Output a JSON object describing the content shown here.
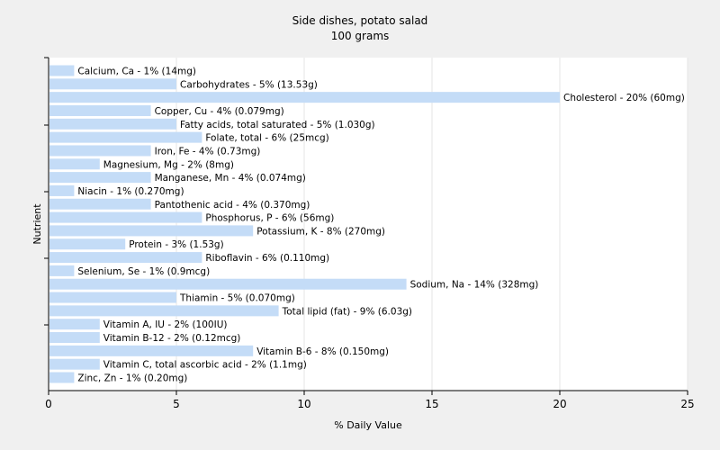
{
  "chart_data": {
    "type": "bar",
    "orientation": "horizontal",
    "title": "Side dishes, potato salad",
    "subtitle": "100 grams",
    "xlabel": "% Daily Value",
    "ylabel": "Nutrient",
    "xlim": [
      0,
      25
    ],
    "xticks": [
      0,
      5,
      10,
      15,
      20,
      25
    ],
    "grid": true,
    "bar_color": "#c4dcf7",
    "categories": [
      "Calcium, Ca - 1% (14mg)",
      "Carbohydrates - 5% (13.53g)",
      "Cholesterol - 20% (60mg)",
      "Copper, Cu - 4% (0.079mg)",
      "Fatty acids, total saturated - 5% (1.030g)",
      "Folate, total - 6% (25mcg)",
      "Iron, Fe - 4% (0.73mg)",
      "Magnesium, Mg - 2% (8mg)",
      "Manganese, Mn - 4% (0.074mg)",
      "Niacin - 1% (0.270mg)",
      "Pantothenic acid - 4% (0.370mg)",
      "Phosphorus, P - 6% (56mg)",
      "Potassium, K - 8% (270mg)",
      "Protein - 3% (1.53g)",
      "Riboflavin - 6% (0.110mg)",
      "Selenium, Se - 1% (0.9mcg)",
      "Sodium, Na - 14% (328mg)",
      "Thiamin - 5% (0.070mg)",
      "Total lipid (fat) - 9% (6.03g)",
      "Vitamin A, IU - 2% (100IU)",
      "Vitamin B-12 - 2% (0.12mcg)",
      "Vitamin B-6 - 8% (0.150mg)",
      "Vitamin C, total ascorbic acid - 2% (1.1mg)",
      "Zinc, Zn - 1% (0.20mg)"
    ],
    "values": [
      1,
      5,
      20,
      4,
      5,
      6,
      4,
      2,
      4,
      1,
      4,
      6,
      8,
      3,
      6,
      1,
      14,
      5,
      9,
      2,
      2,
      8,
      2,
      1
    ]
  }
}
